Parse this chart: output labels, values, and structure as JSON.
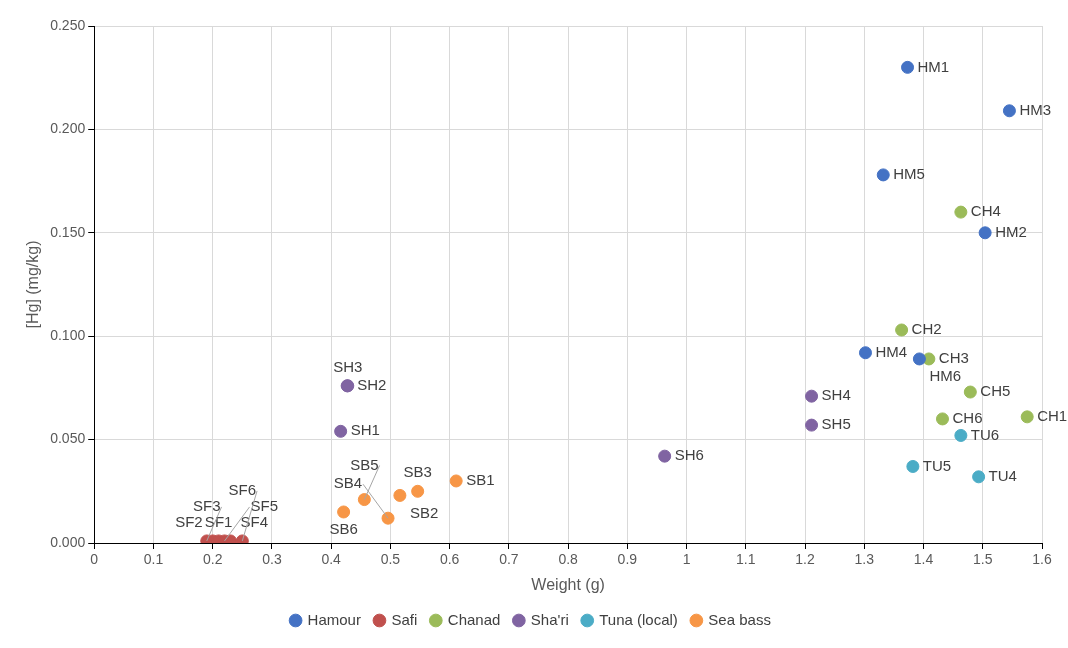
{
  "chart_data": {
    "type": "scatter",
    "xlabel": "Weight (g)",
    "ylabel": "[Hg] (mg/kg)",
    "xlim": [
      0,
      1.6
    ],
    "xticks": [
      0,
      0.1,
      0.2,
      0.3,
      0.4,
      0.5,
      0.6,
      0.7,
      0.8,
      0.9,
      1,
      1.1,
      1.2,
      1.3,
      1.4,
      1.5,
      1.6
    ],
    "ylim": [
      0,
      0.25
    ],
    "yticks": [
      {
        "value": 0,
        "label": "0.000"
      },
      {
        "value": 0.05,
        "label": "0.050"
      },
      {
        "value": 0.1,
        "label": "0.100"
      },
      {
        "value": 0.15,
        "label": "0.150"
      },
      {
        "value": 0.2,
        "label": "0.200"
      },
      {
        "value": 0.25,
        "label": "0.250"
      }
    ],
    "grid": true,
    "legend": "bottom",
    "marker": "circle",
    "series": [
      {
        "name": "Hamour",
        "color": "#4472c4",
        "x": [
          1.373,
          1.504,
          1.545,
          1.302,
          1.332,
          1.393
        ],
        "values": [
          0.23,
          0.15,
          0.209,
          0.092,
          0.178,
          0.089
        ]
      },
      {
        "name": "Safi",
        "color": "#c0504d",
        "x": [
          0.19,
          0.2,
          0.21,
          0.22,
          0.23,
          0.25
        ],
        "values": [
          0.001,
          0.001,
          0.001,
          0.001,
          0.001,
          0.001
        ]
      },
      {
        "name": "Chanad",
        "color": "#9bbb59",
        "x": [
          1.575,
          1.363,
          1.409,
          1.463,
          1.479,
          1.432
        ],
        "values": [
          0.061,
          0.103,
          0.089,
          0.16,
          0.073,
          0.06
        ]
      },
      {
        "name": "Sha'ri",
        "color": "#8064a2",
        "x": [
          0.416,
          0.427,
          0.428,
          1.211,
          1.211,
          0.963
        ],
        "values": [
          0.054,
          0.076,
          0.076,
          0.071,
          0.057,
          0.042
        ]
      },
      {
        "name": "Tuna (local)",
        "color": "#4bacc6",
        "x": [
          1.493,
          1.382,
          1.463
        ],
        "values": [
          0.032,
          0.037,
          0.052
        ]
      },
      {
        "name": "Sea bass",
        "color": "#f79646",
        "x": [
          0.611,
          0.516,
          0.546,
          0.496,
          0.456,
          0.421
        ],
        "values": [
          0.03,
          0.023,
          0.025,
          0.012,
          0.021,
          0.015
        ]
      }
    ],
    "annotations": [
      {
        "text": "HM1",
        "x": 1.373,
        "y": 0.23
      },
      {
        "text": "HM2",
        "x": 1.504,
        "y": 0.15
      },
      {
        "text": "HM3",
        "x": 1.545,
        "y": 0.209
      },
      {
        "text": "HM4",
        "x": 1.302,
        "y": 0.092
      },
      {
        "text": "HM5",
        "x": 1.332,
        "y": 0.178
      },
      {
        "text": "HM6",
        "x": 1.393,
        "y": 0.089
      },
      {
        "text": "SF1",
        "x": 0.21,
        "y": 0.001
      },
      {
        "text": "SF2",
        "x": 0.2,
        "y": 0.001
      },
      {
        "text": "SF3",
        "x": 0.19,
        "y": 0.001
      },
      {
        "text": "SF4",
        "x": 0.23,
        "y": 0.001
      },
      {
        "text": "SF5",
        "x": 0.22,
        "y": 0.001
      },
      {
        "text": "SF6",
        "x": 0.25,
        "y": 0.001
      },
      {
        "text": "CH1",
        "x": 1.575,
        "y": 0.061
      },
      {
        "text": "CH2",
        "x": 1.363,
        "y": 0.103
      },
      {
        "text": "CH3",
        "x": 1.409,
        "y": 0.089
      },
      {
        "text": "CH4",
        "x": 1.463,
        "y": 0.16
      },
      {
        "text": "CH5",
        "x": 1.479,
        "y": 0.073
      },
      {
        "text": "CH6",
        "x": 1.432,
        "y": 0.06
      },
      {
        "text": "SH1",
        "x": 0.416,
        "y": 0.054
      },
      {
        "text": "SH2",
        "x": 0.427,
        "y": 0.076
      },
      {
        "text": "SH3",
        "x": 0.428,
        "y": 0.076
      },
      {
        "text": "SH4",
        "x": 1.211,
        "y": 0.071
      },
      {
        "text": "SH5",
        "x": 1.211,
        "y": 0.057
      },
      {
        "text": "SH6",
        "x": 0.963,
        "y": 0.042
      },
      {
        "text": "TU4",
        "x": 1.493,
        "y": 0.032
      },
      {
        "text": "TU5",
        "x": 1.382,
        "y": 0.037
      },
      {
        "text": "TU6",
        "x": 1.463,
        "y": 0.052
      },
      {
        "text": "SB1",
        "x": 0.611,
        "y": 0.03
      },
      {
        "text": "SB2",
        "x": 0.516,
        "y": 0.023
      },
      {
        "text": "SB3",
        "x": 0.546,
        "y": 0.025
      },
      {
        "text": "SB4",
        "x": 0.496,
        "y": 0.012
      },
      {
        "text": "SB5",
        "x": 0.456,
        "y": 0.021
      },
      {
        "text": "SB6",
        "x": 0.421,
        "y": 0.015
      }
    ]
  }
}
